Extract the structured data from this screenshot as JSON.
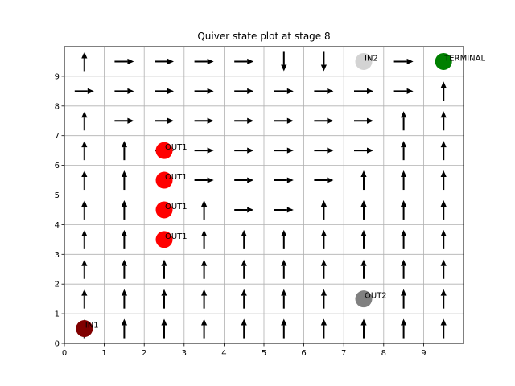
{
  "chart_data": {
    "type": "quiver",
    "title": "Quiver state plot at stage 8",
    "xlabel": "",
    "ylabel": "",
    "xlim": [
      0,
      10
    ],
    "ylim": [
      0,
      10
    ],
    "xticks": [
      0,
      1,
      2,
      3,
      4,
      5,
      6,
      7,
      8,
      9
    ],
    "yticks": [
      0,
      1,
      2,
      3,
      4,
      5,
      6,
      7,
      8,
      9
    ],
    "grid": true,
    "arrow_color": "#000000",
    "arrows": [
      {
        "x": 0.5,
        "y": 0.5,
        "dir": "up"
      },
      {
        "x": 0.5,
        "y": 1.5,
        "dir": "up"
      },
      {
        "x": 0.5,
        "y": 2.5,
        "dir": "up"
      },
      {
        "x": 0.5,
        "y": 3.5,
        "dir": "up"
      },
      {
        "x": 0.5,
        "y": 4.5,
        "dir": "up"
      },
      {
        "x": 0.5,
        "y": 5.5,
        "dir": "up"
      },
      {
        "x": 0.5,
        "y": 6.5,
        "dir": "up"
      },
      {
        "x": 0.5,
        "y": 7.5,
        "dir": "up"
      },
      {
        "x": 0.5,
        "y": 9.5,
        "dir": "up"
      },
      {
        "x": 1.5,
        "y": 0.5,
        "dir": "up"
      },
      {
        "x": 1.5,
        "y": 1.5,
        "dir": "up"
      },
      {
        "x": 1.5,
        "y": 2.5,
        "dir": "up"
      },
      {
        "x": 1.5,
        "y": 3.5,
        "dir": "up"
      },
      {
        "x": 1.5,
        "y": 4.5,
        "dir": "up"
      },
      {
        "x": 1.5,
        "y": 5.5,
        "dir": "up"
      },
      {
        "x": 1.5,
        "y": 6.5,
        "dir": "up"
      },
      {
        "x": 2.5,
        "y": 0.5,
        "dir": "up"
      },
      {
        "x": 2.5,
        "y": 1.5,
        "dir": "up"
      },
      {
        "x": 2.5,
        "y": 2.5,
        "dir": "up"
      },
      {
        "x": 3.5,
        "y": 0.5,
        "dir": "up"
      },
      {
        "x": 3.5,
        "y": 1.5,
        "dir": "up"
      },
      {
        "x": 3.5,
        "y": 2.5,
        "dir": "up"
      },
      {
        "x": 3.5,
        "y": 3.5,
        "dir": "up"
      },
      {
        "x": 3.5,
        "y": 4.5,
        "dir": "up"
      },
      {
        "x": 4.5,
        "y": 0.5,
        "dir": "up"
      },
      {
        "x": 4.5,
        "y": 1.5,
        "dir": "up"
      },
      {
        "x": 4.5,
        "y": 2.5,
        "dir": "up"
      },
      {
        "x": 4.5,
        "y": 3.5,
        "dir": "up"
      },
      {
        "x": 5.5,
        "y": 0.5,
        "dir": "up"
      },
      {
        "x": 5.5,
        "y": 1.5,
        "dir": "up"
      },
      {
        "x": 5.5,
        "y": 2.5,
        "dir": "up"
      },
      {
        "x": 5.5,
        "y": 3.5,
        "dir": "up"
      },
      {
        "x": 6.5,
        "y": 0.5,
        "dir": "up"
      },
      {
        "x": 6.5,
        "y": 1.5,
        "dir": "up"
      },
      {
        "x": 6.5,
        "y": 2.5,
        "dir": "up"
      },
      {
        "x": 6.5,
        "y": 3.5,
        "dir": "up"
      },
      {
        "x": 6.5,
        "y": 4.5,
        "dir": "up"
      },
      {
        "x": 7.5,
        "y": 0.5,
        "dir": "up"
      },
      {
        "x": 7.5,
        "y": 2.5,
        "dir": "up"
      },
      {
        "x": 7.5,
        "y": 3.5,
        "dir": "up"
      },
      {
        "x": 7.5,
        "y": 4.5,
        "dir": "up"
      },
      {
        "x": 7.5,
        "y": 5.5,
        "dir": "up"
      },
      {
        "x": 8.5,
        "y": 0.5,
        "dir": "up"
      },
      {
        "x": 8.5,
        "y": 1.5,
        "dir": "up"
      },
      {
        "x": 8.5,
        "y": 2.5,
        "dir": "up"
      },
      {
        "x": 8.5,
        "y": 3.5,
        "dir": "up"
      },
      {
        "x": 8.5,
        "y": 4.5,
        "dir": "up"
      },
      {
        "x": 8.5,
        "y": 5.5,
        "dir": "up"
      },
      {
        "x": 8.5,
        "y": 6.5,
        "dir": "up"
      },
      {
        "x": 8.5,
        "y": 7.5,
        "dir": "up"
      },
      {
        "x": 9.5,
        "y": 0.5,
        "dir": "up"
      },
      {
        "x": 9.5,
        "y": 1.5,
        "dir": "up"
      },
      {
        "x": 9.5,
        "y": 2.5,
        "dir": "up"
      },
      {
        "x": 9.5,
        "y": 3.5,
        "dir": "up"
      },
      {
        "x": 9.5,
        "y": 4.5,
        "dir": "up"
      },
      {
        "x": 9.5,
        "y": 5.5,
        "dir": "up"
      },
      {
        "x": 9.5,
        "y": 6.5,
        "dir": "up"
      },
      {
        "x": 9.5,
        "y": 7.5,
        "dir": "up"
      },
      {
        "x": 9.5,
        "y": 8.5,
        "dir": "up"
      },
      {
        "x": 1.5,
        "y": 9.5,
        "dir": "right"
      },
      {
        "x": 2.5,
        "y": 9.5,
        "dir": "right"
      },
      {
        "x": 3.5,
        "y": 9.5,
        "dir": "right"
      },
      {
        "x": 4.5,
        "y": 9.5,
        "dir": "right"
      },
      {
        "x": 8.5,
        "y": 9.5,
        "dir": "right"
      },
      {
        "x": 5.5,
        "y": 9.5,
        "dir": "down"
      },
      {
        "x": 6.5,
        "y": 9.5,
        "dir": "down"
      },
      {
        "x": 0.5,
        "y": 8.5,
        "dir": "right"
      },
      {
        "x": 1.5,
        "y": 8.5,
        "dir": "right"
      },
      {
        "x": 2.5,
        "y": 8.5,
        "dir": "right"
      },
      {
        "x": 3.5,
        "y": 8.5,
        "dir": "right"
      },
      {
        "x": 4.5,
        "y": 8.5,
        "dir": "right"
      },
      {
        "x": 5.5,
        "y": 8.5,
        "dir": "right"
      },
      {
        "x": 6.5,
        "y": 8.5,
        "dir": "right"
      },
      {
        "x": 7.5,
        "y": 8.5,
        "dir": "right"
      },
      {
        "x": 8.5,
        "y": 8.5,
        "dir": "right"
      },
      {
        "x": 1.5,
        "y": 7.5,
        "dir": "right"
      },
      {
        "x": 2.5,
        "y": 7.5,
        "dir": "right"
      },
      {
        "x": 3.5,
        "y": 7.5,
        "dir": "right"
      },
      {
        "x": 4.5,
        "y": 7.5,
        "dir": "right"
      },
      {
        "x": 5.5,
        "y": 7.5,
        "dir": "right"
      },
      {
        "x": 6.5,
        "y": 7.5,
        "dir": "right"
      },
      {
        "x": 7.5,
        "y": 7.5,
        "dir": "right"
      },
      {
        "x": 2.5,
        "y": 6.5,
        "dir": "right"
      },
      {
        "x": 3.5,
        "y": 6.5,
        "dir": "right"
      },
      {
        "x": 4.5,
        "y": 6.5,
        "dir": "right"
      },
      {
        "x": 5.5,
        "y": 6.5,
        "dir": "right"
      },
      {
        "x": 6.5,
        "y": 6.5,
        "dir": "right"
      },
      {
        "x": 7.5,
        "y": 6.5,
        "dir": "right"
      },
      {
        "x": 3.5,
        "y": 5.5,
        "dir": "right"
      },
      {
        "x": 4.5,
        "y": 5.5,
        "dir": "right"
      },
      {
        "x": 5.5,
        "y": 5.5,
        "dir": "right"
      },
      {
        "x": 6.5,
        "y": 5.5,
        "dir": "right"
      },
      {
        "x": 4.5,
        "y": 4.5,
        "dir": "right"
      },
      {
        "x": 5.5,
        "y": 4.5,
        "dir": "right"
      }
    ],
    "nodes": [
      {
        "label": "IN1",
        "x": 0.5,
        "y": 0.5,
        "color": "#800000"
      },
      {
        "label": "OUT1",
        "x": 2.5,
        "y": 3.5,
        "color": "#ff0000"
      },
      {
        "label": "OUT1",
        "x": 2.5,
        "y": 4.5,
        "color": "#ff0000"
      },
      {
        "label": "OUT1",
        "x": 2.5,
        "y": 5.5,
        "color": "#ff0000"
      },
      {
        "label": "OUT1",
        "x": 2.5,
        "y": 6.5,
        "color": "#ff0000"
      },
      {
        "label": "OUT2",
        "x": 7.5,
        "y": 1.5,
        "color": "#808080"
      },
      {
        "label": "IN2",
        "x": 7.5,
        "y": 9.5,
        "color": "#d3d3d3"
      },
      {
        "label": "TERMINAL",
        "x": 9.5,
        "y": 9.5,
        "color": "#008000"
      }
    ]
  }
}
